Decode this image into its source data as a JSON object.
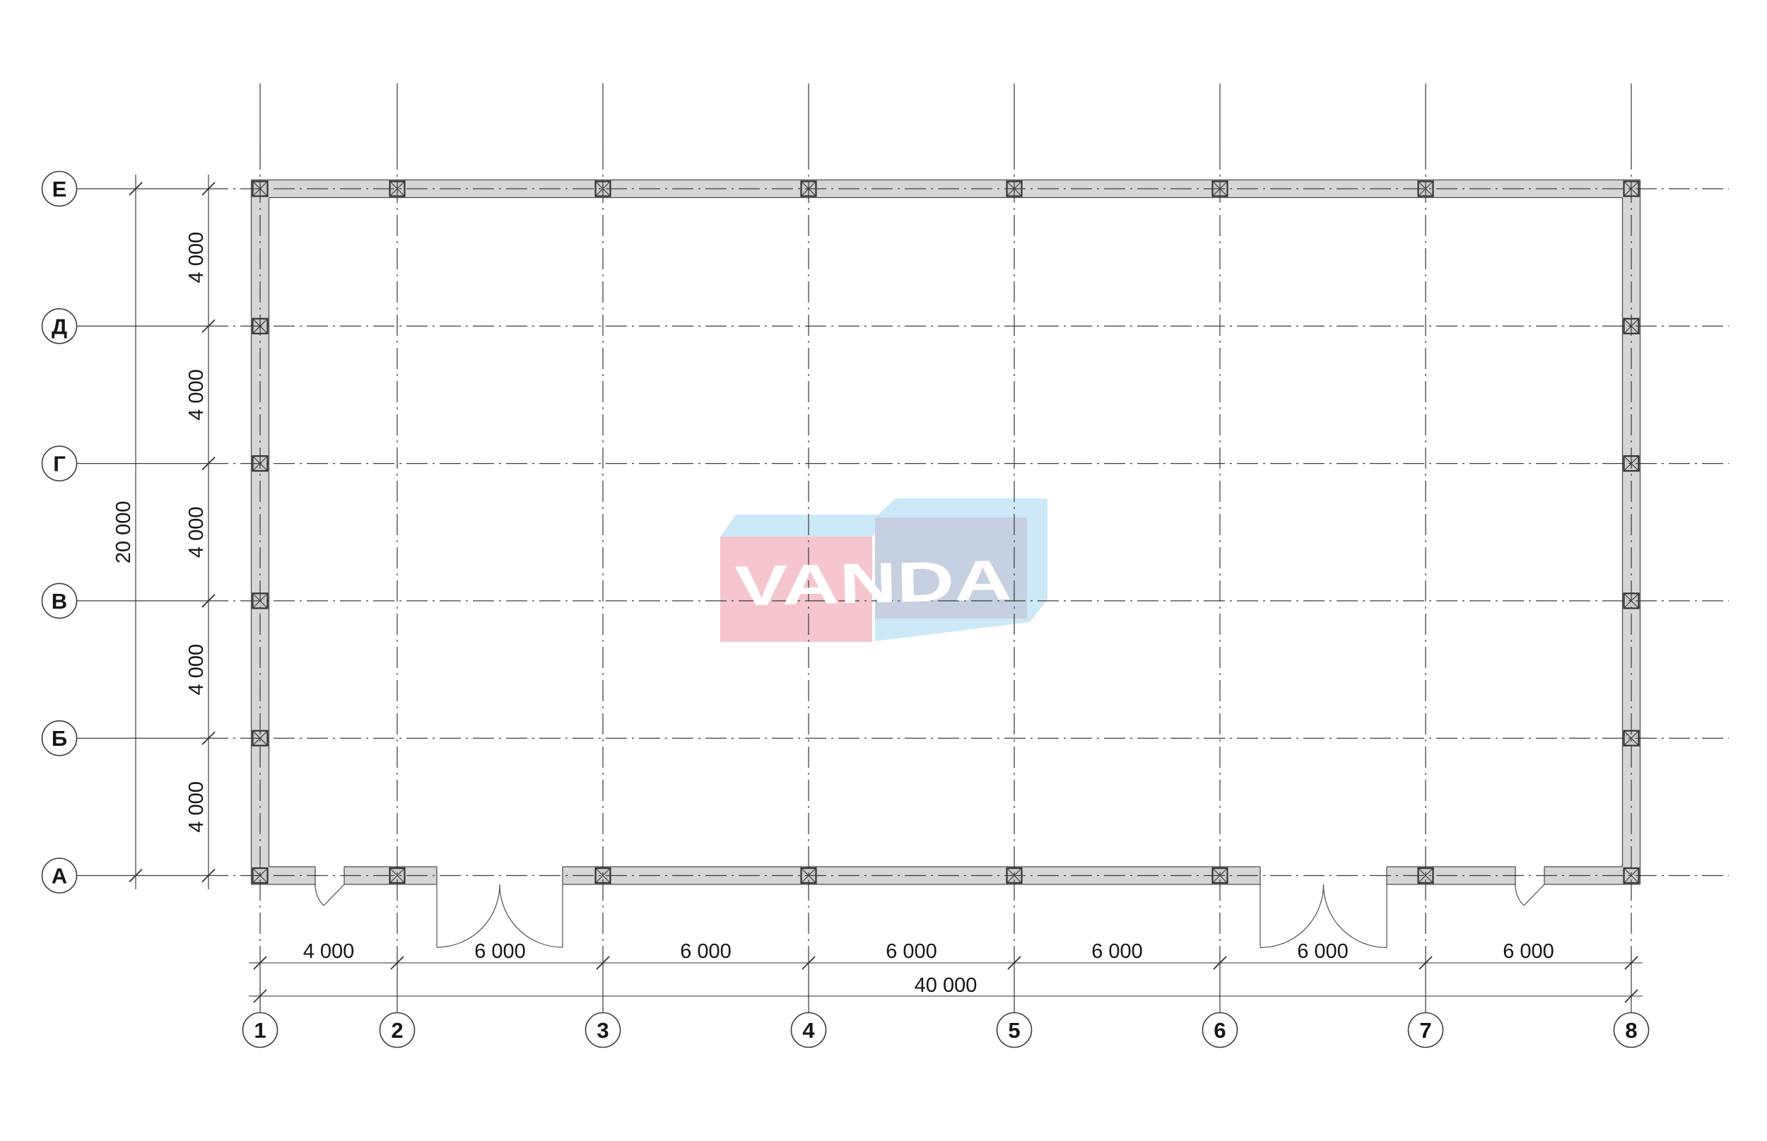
{
  "plan": {
    "background": "#ffffff",
    "axes": {
      "rows": {
        "labels": [
          "Е",
          "Д",
          "Г",
          "В",
          "Б",
          "А"
        ]
      },
      "cols": {
        "labels": [
          "1",
          "2",
          "3",
          "4",
          "5",
          "6",
          "7",
          "8"
        ]
      }
    },
    "dimensions": {
      "left_bays": [
        "4 000",
        "4 000",
        "4 000",
        "4 000",
        "4 000"
      ],
      "left_total": "20 000",
      "bottom_bays": [
        "4 000",
        "6 000",
        "6 000",
        "6 000",
        "6 000",
        "6 000",
        "6 000"
      ],
      "bottom_total": "40 000"
    },
    "logo": {
      "text": "VANDA",
      "colors": {
        "pink": "#f5c6ce",
        "sky": "#cde8f6",
        "slate": "#c6d0e0",
        "text": "#ffffff"
      }
    },
    "colors": {
      "wall_fill": "#d6d6d6",
      "wall_line": "#4e4e4e",
      "column_fill": "#c9c9c9",
      "column_line": "#333333",
      "grid_line": "#3c3c3c",
      "dim_line": "#2f2f2f",
      "text": "#161616",
      "bubble_fill": "#ffffff"
    }
  }
}
